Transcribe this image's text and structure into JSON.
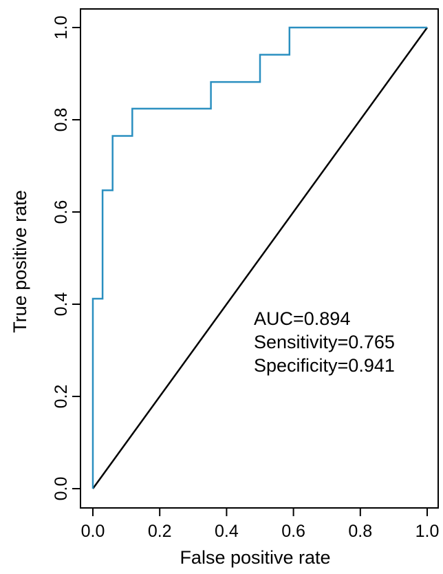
{
  "chart_data": {
    "type": "line",
    "title": "",
    "xlabel": "False positive rate",
    "ylabel": "True positive rate",
    "xlim": [
      0.0,
      1.0
    ],
    "ylim": [
      0.0,
      1.0
    ],
    "x_ticks": [
      0.0,
      0.2,
      0.4,
      0.6,
      0.8,
      1.0
    ],
    "x_tick_labels": [
      "0.0",
      "0.2",
      "0.4",
      "0.6",
      "0.8",
      "1.0"
    ],
    "y_ticks": [
      0.0,
      0.2,
      0.4,
      0.6,
      0.8,
      1.0
    ],
    "y_tick_labels": [
      "0.0",
      "0.2",
      "0.4",
      "0.6",
      "0.8",
      "1.0"
    ],
    "grid": false,
    "series": [
      {
        "color": "#2a8fc0",
        "step": true,
        "x": [
          0.0,
          0.0,
          0.029,
          0.029,
          0.059,
          0.059,
          0.118,
          0.118,
          0.353,
          0.353,
          0.5,
          0.5,
          0.588,
          0.588,
          1.0
        ],
        "y": [
          0.0,
          0.412,
          0.412,
          0.647,
          0.647,
          0.765,
          0.765,
          0.824,
          0.824,
          0.882,
          0.882,
          0.941,
          0.941,
          1.0,
          1.0
        ]
      },
      {
        "color": "#000000",
        "x": [
          0.0,
          1.0
        ],
        "y": [
          0.0,
          1.0
        ]
      }
    ],
    "annotations": [
      "AUC=0.894",
      "Sensitivity=0.765",
      "Specificity=0.941"
    ]
  }
}
